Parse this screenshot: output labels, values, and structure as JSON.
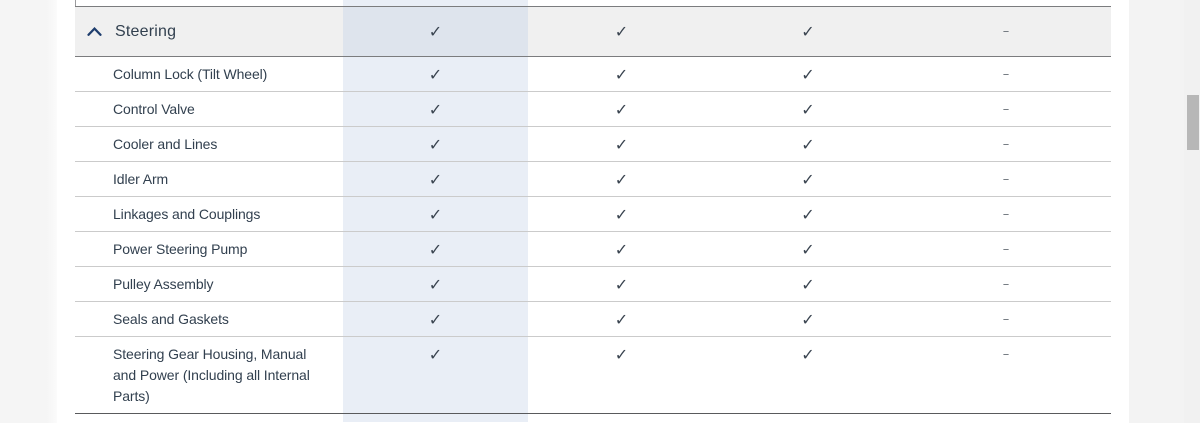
{
  "category": {
    "label": "Steering",
    "collapse_icon": "chevron-up",
    "header_cells": [
      "check",
      "check",
      "check",
      "dash"
    ]
  },
  "symbols": {
    "check": "✓",
    "dash": "–"
  },
  "rows": [
    {
      "label": "Column Lock (Tilt Wheel)",
      "cells": [
        "check",
        "check",
        "check",
        "dash"
      ]
    },
    {
      "label": "Control Valve",
      "cells": [
        "check",
        "check",
        "check",
        "dash"
      ]
    },
    {
      "label": "Cooler and Lines",
      "cells": [
        "check",
        "check",
        "check",
        "dash"
      ]
    },
    {
      "label": "Idler Arm",
      "cells": [
        "check",
        "check",
        "check",
        "dash"
      ]
    },
    {
      "label": "Linkages and Couplings",
      "cells": [
        "check",
        "check",
        "check",
        "dash"
      ]
    },
    {
      "label": "Power Steering Pump",
      "cells": [
        "check",
        "check",
        "check",
        "dash"
      ]
    },
    {
      "label": "Pulley Assembly",
      "cells": [
        "check",
        "check",
        "check",
        "dash"
      ]
    },
    {
      "label": "Seals and Gaskets",
      "cells": [
        "check",
        "check",
        "check",
        "dash"
      ]
    },
    {
      "label": "Steering Gear Housing, Manual and Power (Including all Internal Parts)",
      "cells": [
        "check",
        "check",
        "check",
        "dash"
      ]
    }
  ],
  "colors": {
    "text": "#32404f",
    "chevron": "#1f3e6e",
    "check": "#3a4450",
    "dash": "#6f767d",
    "header_bg": "#f0f0f0",
    "highlight_column": "#e9eef6",
    "highlight_column_header": "#dee4ed",
    "scrollbar_thumb": "#b7b7b7"
  }
}
